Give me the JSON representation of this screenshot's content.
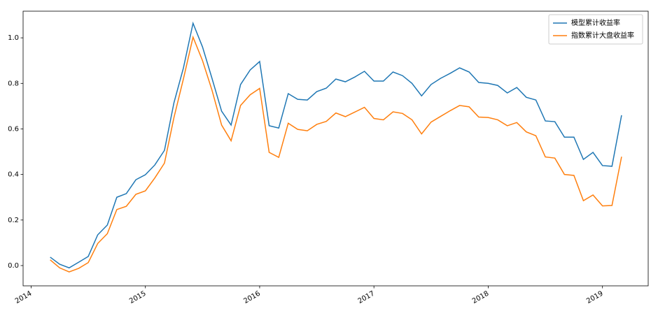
{
  "chart_data": {
    "type": "line",
    "x": [
      2014.167,
      2014.25,
      2014.333,
      2014.417,
      2014.5,
      2014.583,
      2014.667,
      2014.75,
      2014.833,
      2014.917,
      2015.0,
      2015.083,
      2015.167,
      2015.25,
      2015.333,
      2015.417,
      2015.5,
      2015.583,
      2015.667,
      2015.75,
      2015.833,
      2015.917,
      2016.0,
      2016.083,
      2016.167,
      2016.25,
      2016.333,
      2016.417,
      2016.5,
      2016.583,
      2016.667,
      2016.75,
      2016.833,
      2016.917,
      2017.0,
      2017.083,
      2017.167,
      2017.25,
      2017.333,
      2017.417,
      2017.5,
      2017.583,
      2017.667,
      2017.75,
      2017.833,
      2017.917,
      2018.0,
      2018.083,
      2018.167,
      2018.25,
      2018.333,
      2018.417,
      2018.5,
      2018.583,
      2018.667,
      2018.75,
      2018.833,
      2018.917,
      2019.0,
      2019.083,
      2019.167
    ],
    "series": [
      {
        "name": "模型累计收益率",
        "color": "#1f77b4",
        "values": [
          0.037,
          0.006,
          -0.01,
          0.015,
          0.04,
          0.135,
          0.178,
          0.3,
          0.316,
          0.377,
          0.399,
          0.442,
          0.506,
          0.715,
          0.868,
          1.064,
          0.96,
          0.822,
          0.678,
          0.617,
          0.795,
          0.859,
          0.896,
          0.614,
          0.604,
          0.755,
          0.73,
          0.727,
          0.764,
          0.779,
          0.819,
          0.807,
          0.828,
          0.853,
          0.81,
          0.81,
          0.85,
          0.834,
          0.8,
          0.745,
          0.795,
          0.822,
          0.844,
          0.868,
          0.85,
          0.804,
          0.8,
          0.791,
          0.758,
          0.782,
          0.739,
          0.727,
          0.635,
          0.632,
          0.564,
          0.564,
          0.466,
          0.497,
          0.439,
          0.436,
          0.66
        ]
      },
      {
        "name": "指数累计大盘收益率",
        "color": "#ff7f0e",
        "values": [
          0.025,
          -0.01,
          -0.028,
          -0.012,
          0.013,
          0.097,
          0.14,
          0.246,
          0.26,
          0.313,
          0.328,
          0.385,
          0.45,
          0.65,
          0.82,
          1.003,
          0.9,
          0.77,
          0.617,
          0.548,
          0.703,
          0.75,
          0.778,
          0.497,
          0.475,
          0.625,
          0.598,
          0.592,
          0.62,
          0.633,
          0.67,
          0.654,
          0.674,
          0.695,
          0.646,
          0.64,
          0.675,
          0.668,
          0.64,
          0.578,
          0.63,
          0.655,
          0.68,
          0.703,
          0.697,
          0.652,
          0.65,
          0.64,
          0.614,
          0.628,
          0.587,
          0.57,
          0.477,
          0.472,
          0.4,
          0.396,
          0.285,
          0.31,
          0.262,
          0.264,
          0.478
        ]
      }
    ],
    "xlim": [
      2013.93,
      2019.4
    ],
    "xticks": [
      2014,
      2015,
      2016,
      2017,
      2018,
      2019
    ],
    "ylim": [
      -0.089,
      1.117
    ],
    "yticks": [
      {
        "value": 0,
        "label": "0.0"
      },
      0.2,
      0.4,
      0.6,
      0.8,
      {
        "value": 1,
        "label": "1.0"
      }
    ],
    "legend": "upper right"
  }
}
